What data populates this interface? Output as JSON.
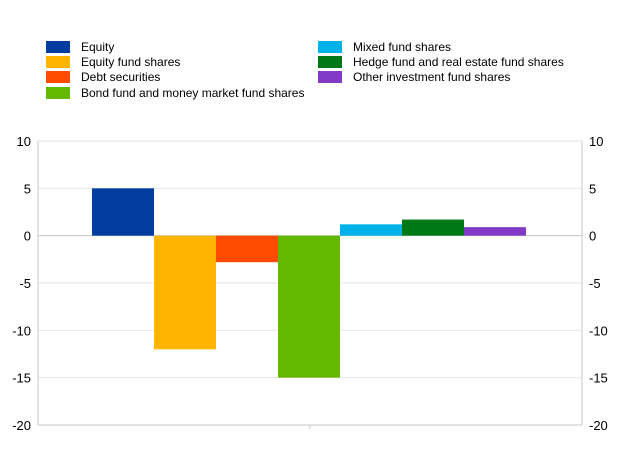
{
  "chart_data": {
    "type": "bar",
    "series": [
      {
        "name": "Equity",
        "value": 5.0,
        "color": "#003d9e"
      },
      {
        "name": "Equity fund shares",
        "value": -12.0,
        "color": "#ffb400"
      },
      {
        "name": "Debt securities",
        "value": -2.8,
        "color": "#ff4b00"
      },
      {
        "name": "Bond fund and money market fund shares",
        "value": -15.0,
        "color": "#65b800"
      },
      {
        "name": "Mixed fund shares",
        "value": 1.2,
        "color": "#00b1ea"
      },
      {
        "name": "Hedge fund and real estate fund shares",
        "value": 1.7,
        "color": "#007816"
      },
      {
        "name": "Other investment fund shares",
        "value": 0.9,
        "color": "#8139c6"
      }
    ],
    "ylim": [
      -20,
      10
    ],
    "yticks": [
      "10",
      "5",
      "0",
      "-5",
      "-10",
      "-15",
      "-20"
    ],
    "ytick_values": [
      10,
      5,
      0,
      -5,
      -10,
      -15,
      -20
    ],
    "grid": true,
    "legend_position": "top",
    "axis_color": "#c8c8c8",
    "grid_color": "#e6e6e6"
  }
}
